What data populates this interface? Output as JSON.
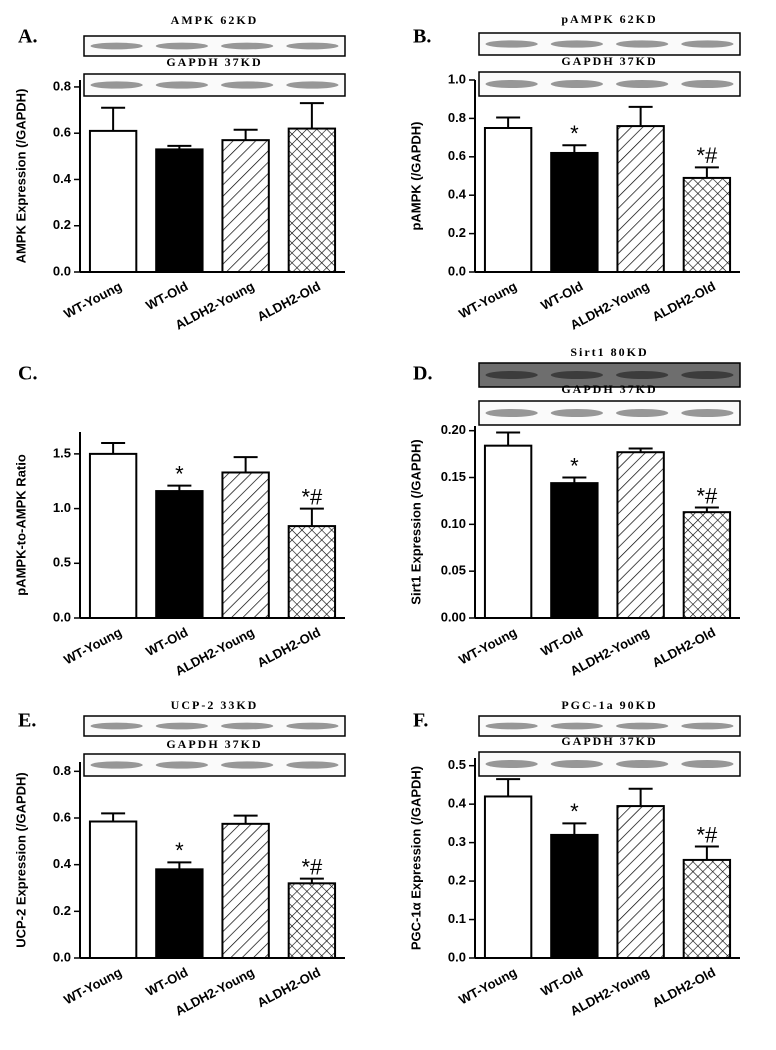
{
  "chart_data": [
    {
      "type": "bar",
      "panel": "A.",
      "blot_labels": [
        "AMPK 62KD",
        "GAPDH 37KD"
      ],
      "ylabel": "AMPK Expression (/GAPDH)",
      "categories": [
        "WT-Young",
        "WT-Old",
        "ALDH2-Young",
        "ALDH2-Old"
      ],
      "values": [
        0.61,
        0.53,
        0.57,
        0.62
      ],
      "errors": [
        0.1,
        0.015,
        0.045,
        0.11
      ],
      "bar_fills": [
        "#ffffff",
        "#000000",
        "hatch",
        "crosshatch"
      ],
      "ylim": [
        0,
        0.83
      ],
      "yticks": [
        {
          "value": 0,
          "label": "0.0"
        },
        0.2,
        0.4,
        0.6,
        0.8
      ]
    },
    {
      "type": "bar",
      "panel": "B.",
      "blot_labels": [
        "pAMPK 62KD",
        "GAPDH 37KD"
      ],
      "ylabel": "pAMPK (/GAPDH)",
      "categories": [
        "WT-Young",
        "WT-Old",
        "ALDH2-Young",
        "ALDH2-Old"
      ],
      "values": [
        0.75,
        0.62,
        0.76,
        0.49
      ],
      "errors": [
        0.055,
        0.04,
        0.1,
        0.055
      ],
      "annotations": [
        null,
        "*",
        null,
        "*#"
      ],
      "bar_fills": [
        "#ffffff",
        "#000000",
        "hatch",
        "crosshatch"
      ],
      "ylim": [
        0,
        1.0
      ],
      "yticks": [
        {
          "value": 0,
          "label": "0.0"
        },
        0.2,
        0.4,
        0.6,
        0.8,
        {
          "value": 1,
          "label": "1.0"
        }
      ]
    },
    {
      "type": "bar",
      "panel": "C.",
      "ylabel": "pAMPK-to-AMPK Ratio",
      "categories": [
        "WT-Young",
        "WT-Old",
        "ALDH2-Young",
        "ALDH2-Old"
      ],
      "values": [
        1.5,
        1.16,
        1.33,
        0.84
      ],
      "errors": [
        0.1,
        0.05,
        0.14,
        0.16
      ],
      "annotations": [
        null,
        "*",
        null,
        "*#"
      ],
      "bar_fills": [
        "#ffffff",
        "#000000",
        "hatch",
        "crosshatch"
      ],
      "ylim": [
        0,
        1.7
      ],
      "yticks": [
        {
          "value": 0,
          "label": "0.0"
        },
        0.5,
        {
          "value": 1,
          "label": "1.0"
        },
        1.5
      ]
    },
    {
      "type": "bar",
      "panel": "D.",
      "blot_labels": [
        "Sirt1 80KD",
        "GAPDH 37KD"
      ],
      "ylabel": "Sirt1 Expression (/GAPDH)",
      "categories": [
        "WT-Young",
        "WT-Old",
        "ALDH2-Young",
        "ALDH2-Old"
      ],
      "values": [
        0.184,
        0.144,
        0.177,
        0.113
      ],
      "errors": [
        0.014,
        0.006,
        0.004,
        0.005
      ],
      "annotations": [
        null,
        "*",
        null,
        "*#"
      ],
      "bar_fills": [
        "#ffffff",
        "#000000",
        "hatch",
        "crosshatch"
      ],
      "ylim": [
        0,
        0.205
      ],
      "yticks": [
        {
          "value": 0,
          "label": "0.00"
        },
        0.05,
        {
          "value": 0.1,
          "label": "0.10"
        },
        0.15,
        {
          "value": 0.2,
          "label": "0.20"
        }
      ]
    },
    {
      "type": "bar",
      "panel": "E.",
      "blot_labels": [
        "UCP-2 33KD",
        "GAPDH 37KD"
      ],
      "ylabel": "UCP-2 Expression (/GAPDH)",
      "categories": [
        "WT-Young",
        "WT-Old",
        "ALDH2-Young",
        "ALDH2-Old"
      ],
      "values": [
        0.585,
        0.38,
        0.575,
        0.32
      ],
      "errors": [
        0.035,
        0.03,
        0.035,
        0.02
      ],
      "annotations": [
        null,
        "*",
        null,
        "*#"
      ],
      "bar_fills": [
        "#ffffff",
        "#000000",
        "hatch",
        "crosshatch"
      ],
      "ylim": [
        0,
        0.84
      ],
      "yticks": [
        {
          "value": 0,
          "label": "0.0"
        },
        0.2,
        0.4,
        0.6,
        0.8
      ]
    },
    {
      "type": "bar",
      "panel": "F.",
      "blot_labels": [
        "PGC-1a 90KD",
        "GAPDH 37KD"
      ],
      "ylabel": "PGC-1α Expression (/GAPDH)",
      "categories": [
        "WT-Young",
        "WT-Old",
        "ALDH2-Young",
        "ALDH2-Old"
      ],
      "values": [
        0.42,
        0.32,
        0.395,
        0.255
      ],
      "errors": [
        0.045,
        0.03,
        0.045,
        0.035
      ],
      "annotations": [
        null,
        "*",
        null,
        "*#"
      ],
      "bar_fills": [
        "#ffffff",
        "#000000",
        "hatch",
        "crosshatch"
      ],
      "ylim": [
        0,
        0.52
      ],
      "yticks": [
        {
          "value": 0,
          "label": "0.0"
        },
        0.1,
        0.2,
        0.3,
        0.4,
        0.5
      ]
    }
  ]
}
